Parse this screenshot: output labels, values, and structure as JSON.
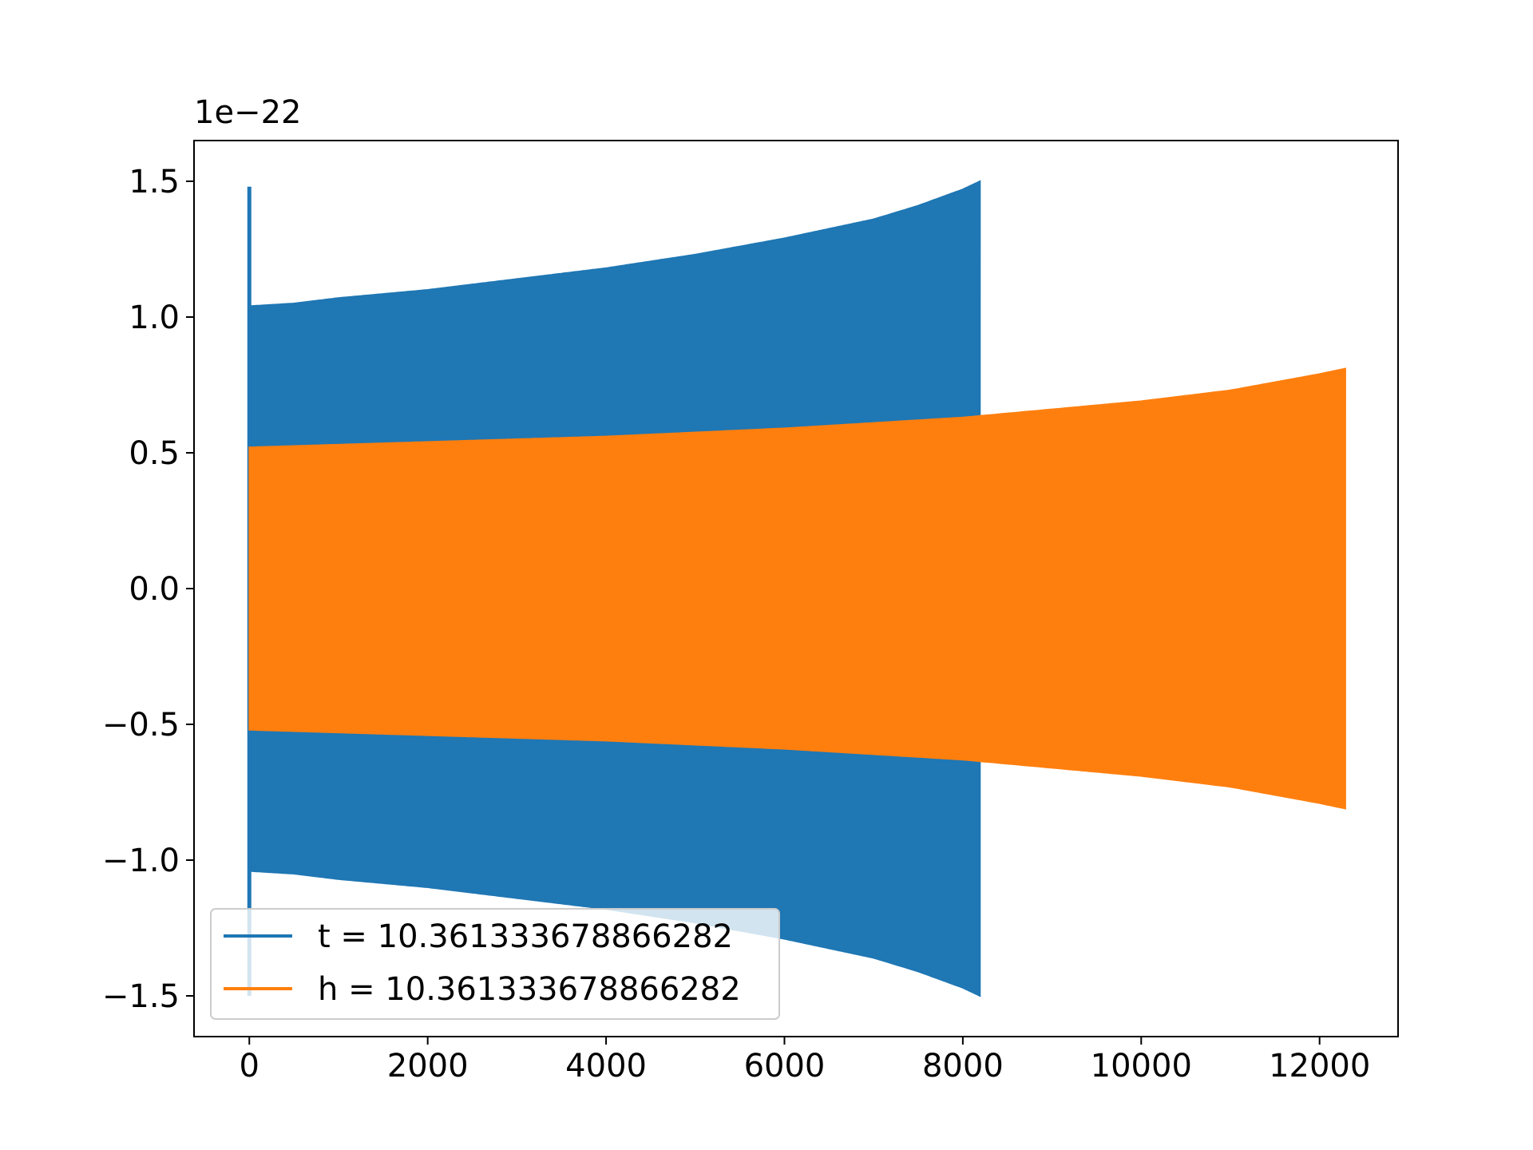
{
  "chart_data": {
    "type": "line",
    "title": "",
    "xlabel": "",
    "ylabel": "",
    "y_offset_text": "1e−22",
    "xlim": [
      -620,
      12880
    ],
    "ylim": [
      -1.65,
      1.65
    ],
    "x_ticks": [
      0,
      2000,
      4000,
      6000,
      8000,
      10000,
      12000
    ],
    "x_tick_labels": [
      "0",
      "2000",
      "4000",
      "6000",
      "8000",
      "10000",
      "12000"
    ],
    "y_ticks": [
      1.5,
      1.0,
      0.5,
      0.0,
      -0.5,
      -1.0,
      -1.5
    ],
    "y_tick_labels": [
      "1.5",
      "1.0",
      "0.5",
      "0.0",
      "−0.5",
      "−1.0",
      "−1.5"
    ],
    "grid": false,
    "legend_position": "lower-left",
    "series": [
      {
        "name": "t = 10.361333678866282",
        "color": "#1f77b4",
        "x_start": 0,
        "x_end": 8192,
        "envelope_x": [
          0,
          500,
          1000,
          2000,
          3000,
          4000,
          5000,
          6000,
          7000,
          7500,
          8000,
          8192
        ],
        "envelope_amp": [
          1.04,
          1.05,
          1.07,
          1.1,
          1.14,
          1.18,
          1.23,
          1.29,
          1.36,
          1.41,
          1.47,
          1.5
        ],
        "initial_spike": [
          1.48,
          -1.5
        ]
      },
      {
        "name": "h = 10.361333678866282",
        "color": "#ff7f0e",
        "x_start": 0,
        "x_end": 12288,
        "envelope_x": [
          0,
          2000,
          4000,
          6000,
          8000,
          10000,
          11000,
          12000,
          12288
        ],
        "envelope_amp": [
          0.52,
          0.54,
          0.56,
          0.59,
          0.63,
          0.69,
          0.73,
          0.79,
          0.81
        ],
        "initial_spike": [
          -0.08,
          -0.08
        ]
      }
    ]
  }
}
